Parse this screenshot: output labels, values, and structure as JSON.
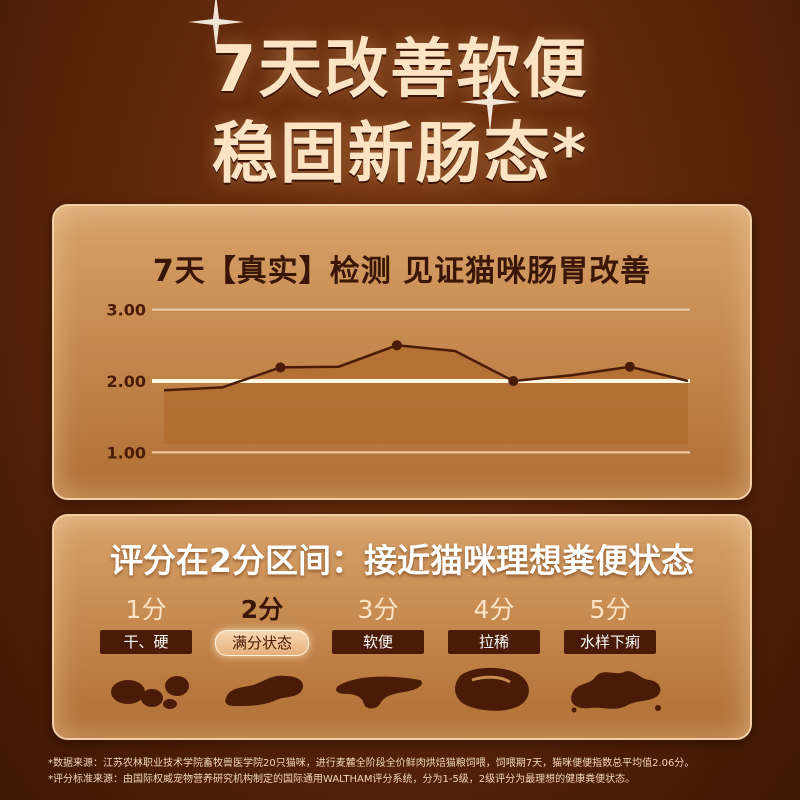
{
  "headline": {
    "line1": "7天改善软便",
    "line2": "稳固新肠态*"
  },
  "chart_card": {
    "title": "7天【真实】检测   见证猫咪肠胃改善"
  },
  "chart_data": {
    "type": "area",
    "title": "7天【真实】检测   见证猫咪肠胃改善",
    "y_ticks": [
      "3.00",
      "2.00",
      "1.00"
    ],
    "ylim": [
      0.95,
      3.05
    ],
    "x": [
      0,
      1,
      2,
      3,
      4,
      5,
      6,
      7,
      8,
      9
    ],
    "values": [
      1.87,
      1.91,
      2.19,
      2.2,
      2.5,
      2.42,
      2.0,
      2.08,
      2.2,
      2.0
    ],
    "markers": [
      2,
      4,
      6,
      8
    ],
    "reference_line": 2.0,
    "grid": true,
    "colors": {
      "line": "#4a1c07",
      "area": "#b06a2e",
      "reference": "#fff6df"
    }
  },
  "scale_card": {
    "title": "评分在2分区间：接近猫咪理想粪便状态",
    "scores": [
      {
        "num": "1分",
        "tag": "干、硬",
        "highlight": false,
        "icon": "pellets-stool-icon"
      },
      {
        "num": "2分",
        "tag": "满分状态",
        "highlight": true,
        "icon": "log-stool-icon"
      },
      {
        "num": "3分",
        "tag": "软便",
        "highlight": false,
        "icon": "soft-stool-icon"
      },
      {
        "num": "4分",
        "tag": "拉稀",
        "highlight": false,
        "icon": "loose-stool-icon"
      },
      {
        "num": "5分",
        "tag": "水样下痢",
        "highlight": false,
        "icon": "watery-stool-icon"
      }
    ]
  },
  "footnotes": {
    "source": "*数据来源：江苏农林职业技术学院畜牧兽医学院20只猫咪，进行麦麓全阶段全价鲜肉烘焙猫粮饲喂，饲喂期7天，猫咪便便指数总平均值2.06分。",
    "standard": "*评分标准来源：由国际权威宠物营养研究机构制定的国际通用WALTHAM评分系统，分为1-5级，2级评分为最理想的健康粪便状态。"
  }
}
